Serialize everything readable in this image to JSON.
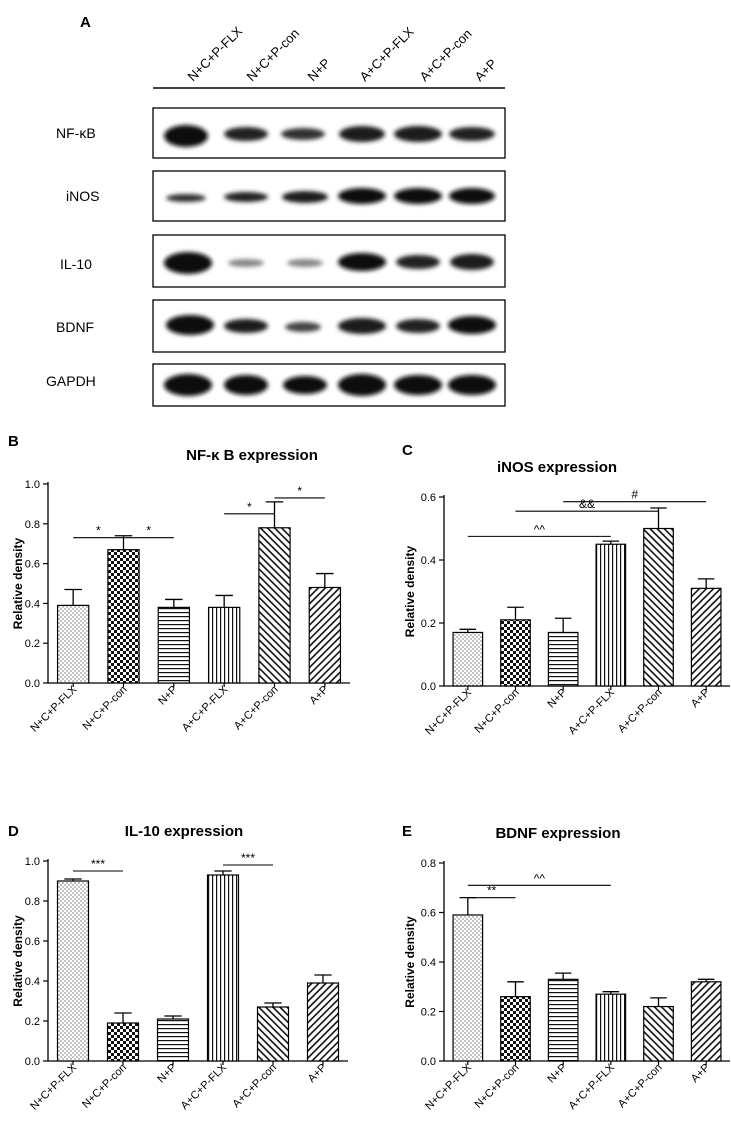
{
  "panel_a": {
    "letter": "A",
    "lanes": [
      "N+C+P-FLX",
      "N+C+P-con",
      "N+P",
      "A+C+P-FLX",
      "A+C+P-con",
      "A+P"
    ],
    "blots": [
      {
        "label": "NF-κB"
      },
      {
        "label": "iNOS"
      },
      {
        "label": "IL-10"
      },
      {
        "label": "BDNF"
      },
      {
        "label": "GAPDH"
      }
    ]
  },
  "chart_data": [
    {
      "letter": "B",
      "type": "bar",
      "title": "NF-κ B expression",
      "ylabel": "Relative density",
      "ylim": [
        0,
        1.0
      ],
      "yticks": [
        "0.0",
        "0.2",
        "0.4",
        "0.6",
        "0.8",
        "1.0"
      ],
      "categories": [
        "N+C+P-FLX",
        "N+C+P-con",
        "N+P",
        "A+C+P-FLX",
        "A+C+P-con",
        "A+P"
      ],
      "values": [
        0.39,
        0.67,
        0.38,
        0.38,
        0.78,
        0.48
      ],
      "errors": [
        0.08,
        0.07,
        0.04,
        0.06,
        0.13,
        0.07
      ],
      "significance": [
        {
          "from": 0,
          "to": 1,
          "label": "*",
          "y": 0.73
        },
        {
          "from": 1,
          "to": 2,
          "label": "*",
          "y": 0.73
        },
        {
          "from": 3,
          "to": 4,
          "label": "*",
          "y": 0.85
        },
        {
          "from": 4,
          "to": 5,
          "label": "*",
          "y": 0.93
        }
      ]
    },
    {
      "letter": "C",
      "type": "bar",
      "title": "iNOS expression",
      "ylabel": "Relative density",
      "ylim": [
        0,
        0.6
      ],
      "yticks": [
        "0.0",
        "0.2",
        "0.4",
        "0.6"
      ],
      "categories": [
        "N+C+P-FLX",
        "N+C+P-con",
        "N+P",
        "A+C+P-FLX",
        "A+C+P-con",
        "A+P"
      ],
      "values": [
        0.17,
        0.21,
        0.17,
        0.45,
        0.5,
        0.31
      ],
      "errors": [
        0.01,
        0.04,
        0.045,
        0.01,
        0.065,
        0.03
      ],
      "significance": [
        {
          "from": 0,
          "to": 3,
          "label": "^^",
          "y": 0.475
        },
        {
          "from": 1,
          "to": 4,
          "label": "&&",
          "y": 0.555
        },
        {
          "from": 2,
          "to": 5,
          "label": "#",
          "y": 0.585
        }
      ]
    },
    {
      "letter": "D",
      "type": "bar",
      "title": "IL-10 expression",
      "ylabel": "Relative density",
      "ylim": [
        0,
        1.0
      ],
      "yticks": [
        "0.0",
        "0.2",
        "0.4",
        "0.6",
        "0.8",
        "1.0"
      ],
      "categories": [
        "N+C+P-FLX",
        "N+C+P-con",
        "N+P",
        "A+C+P-FLX",
        "A+C+P-con",
        "A+P"
      ],
      "values": [
        0.9,
        0.19,
        0.21,
        0.93,
        0.27,
        0.39
      ],
      "errors": [
        0.01,
        0.05,
        0.015,
        0.02,
        0.02,
        0.04
      ],
      "significance": [
        {
          "from": 0,
          "to": 1,
          "label": "***",
          "y": 0.95
        },
        {
          "from": 3,
          "to": 4,
          "label": "***",
          "y": 0.98
        }
      ]
    },
    {
      "letter": "E",
      "type": "bar",
      "title": "BDNF expression",
      "ylabel": "Relative density",
      "ylim": [
        0,
        0.8
      ],
      "yticks": [
        "0.0",
        "0.2",
        "0.4",
        "0.6",
        "0.8"
      ],
      "categories": [
        "N+C+P-FLX",
        "N+C+P-con",
        "N+P",
        "A+C+P-FLX",
        "A+C+P-con",
        "A+P"
      ],
      "values": [
        0.59,
        0.26,
        0.33,
        0.27,
        0.22,
        0.32
      ],
      "errors": [
        0.07,
        0.06,
        0.025,
        0.01,
        0.035,
        0.01
      ],
      "significance": [
        {
          "from": 0,
          "to": 1,
          "label": "**",
          "y": 0.66
        },
        {
          "from": 0,
          "to": 3,
          "label": "^^",
          "y": 0.71
        }
      ]
    }
  ]
}
